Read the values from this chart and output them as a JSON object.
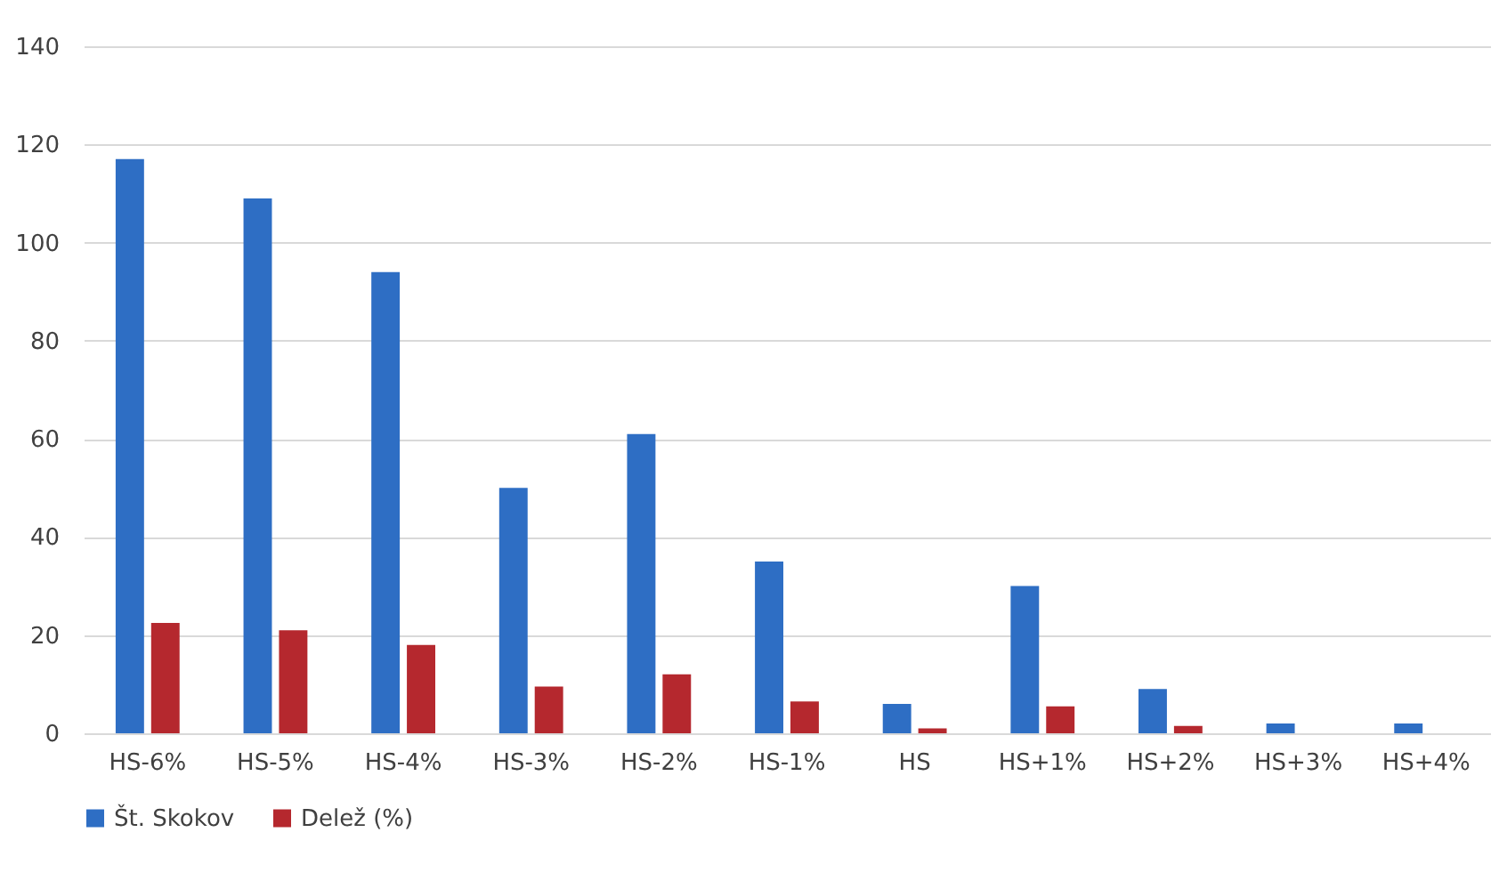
{
  "chart_data": {
    "type": "bar",
    "categories": [
      "HS-6%",
      "HS-5%",
      "HS-4%",
      "HS-3%",
      "HS-2%",
      "HS-1%",
      "HS",
      "HS+1%",
      "HS+2%",
      "HS+3%",
      "HS+4%"
    ],
    "series": [
      {
        "name": "Št. Skokov",
        "color": "#2e6ec4",
        "values": [
          117,
          109,
          94,
          50,
          61,
          35,
          6,
          30,
          9,
          2,
          2
        ]
      },
      {
        "name": "Delež (%)",
        "color": "#b5282e",
        "values": [
          22.5,
          21,
          18,
          9.5,
          12,
          6.5,
          1,
          5.5,
          1.5,
          0,
          0
        ]
      }
    ],
    "ylim": [
      0,
      140
    ],
    "yticks": [
      0,
      20,
      40,
      60,
      80,
      100,
      120,
      140
    ],
    "grid": "y",
    "legend": "bottom"
  }
}
